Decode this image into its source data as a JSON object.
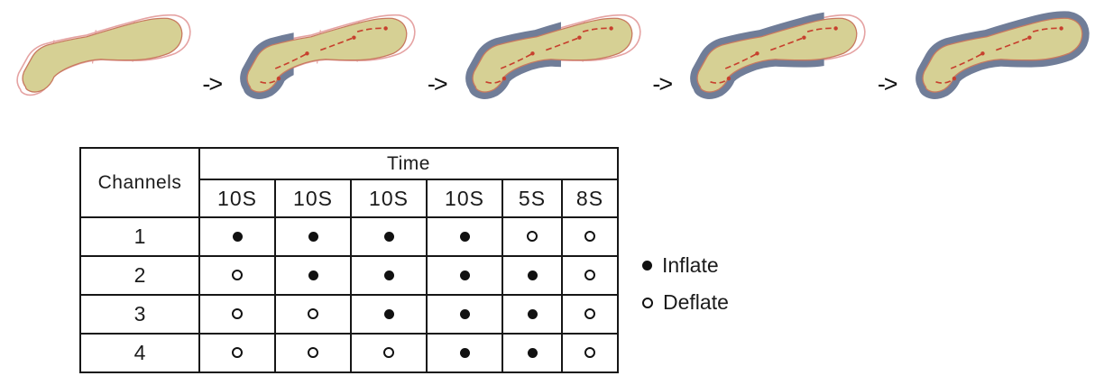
{
  "arrow_symbol": "->",
  "stages": [
    {
      "name": "all-chambers-deflated",
      "inflated_chambers": 0
    },
    {
      "name": "chamber-1-inflated",
      "inflated_chambers": 1
    },
    {
      "name": "chambers-1-2-inflated",
      "inflated_chambers": 2
    },
    {
      "name": "chambers-1-3-inflated",
      "inflated_chambers": 3
    },
    {
      "name": "all-chambers-inflated",
      "inflated_chambers": 4
    }
  ],
  "table": {
    "channels_header": "Channels",
    "time_header": "Time",
    "time_columns": [
      "10S",
      "10S",
      "10S",
      "10S",
      "5S",
      "8S"
    ],
    "rows": [
      {
        "channel": "1",
        "states": [
          "inflate",
          "inflate",
          "inflate",
          "inflate",
          "deflate",
          "deflate"
        ]
      },
      {
        "channel": "2",
        "states": [
          "deflate",
          "inflate",
          "inflate",
          "inflate",
          "inflate",
          "deflate"
        ]
      },
      {
        "channel": "3",
        "states": [
          "deflate",
          "deflate",
          "inflate",
          "inflate",
          "inflate",
          "deflate"
        ]
      },
      {
        "channel": "4",
        "states": [
          "deflate",
          "deflate",
          "deflate",
          "inflate",
          "inflate",
          "deflate"
        ]
      }
    ]
  },
  "legend": [
    {
      "state": "inflate",
      "label": "Inflate"
    },
    {
      "state": "deflate",
      "label": "Deflate"
    }
  ],
  "colors": {
    "leg_fill": "#d6d094",
    "leg_outline": "#c8795f",
    "sleeve_deflated": "#e5a3a3",
    "sleeve_inflated": "#707d98",
    "flow_arrow": "#c7402e",
    "table_border": "#161616",
    "text": "#1b1b1b"
  }
}
